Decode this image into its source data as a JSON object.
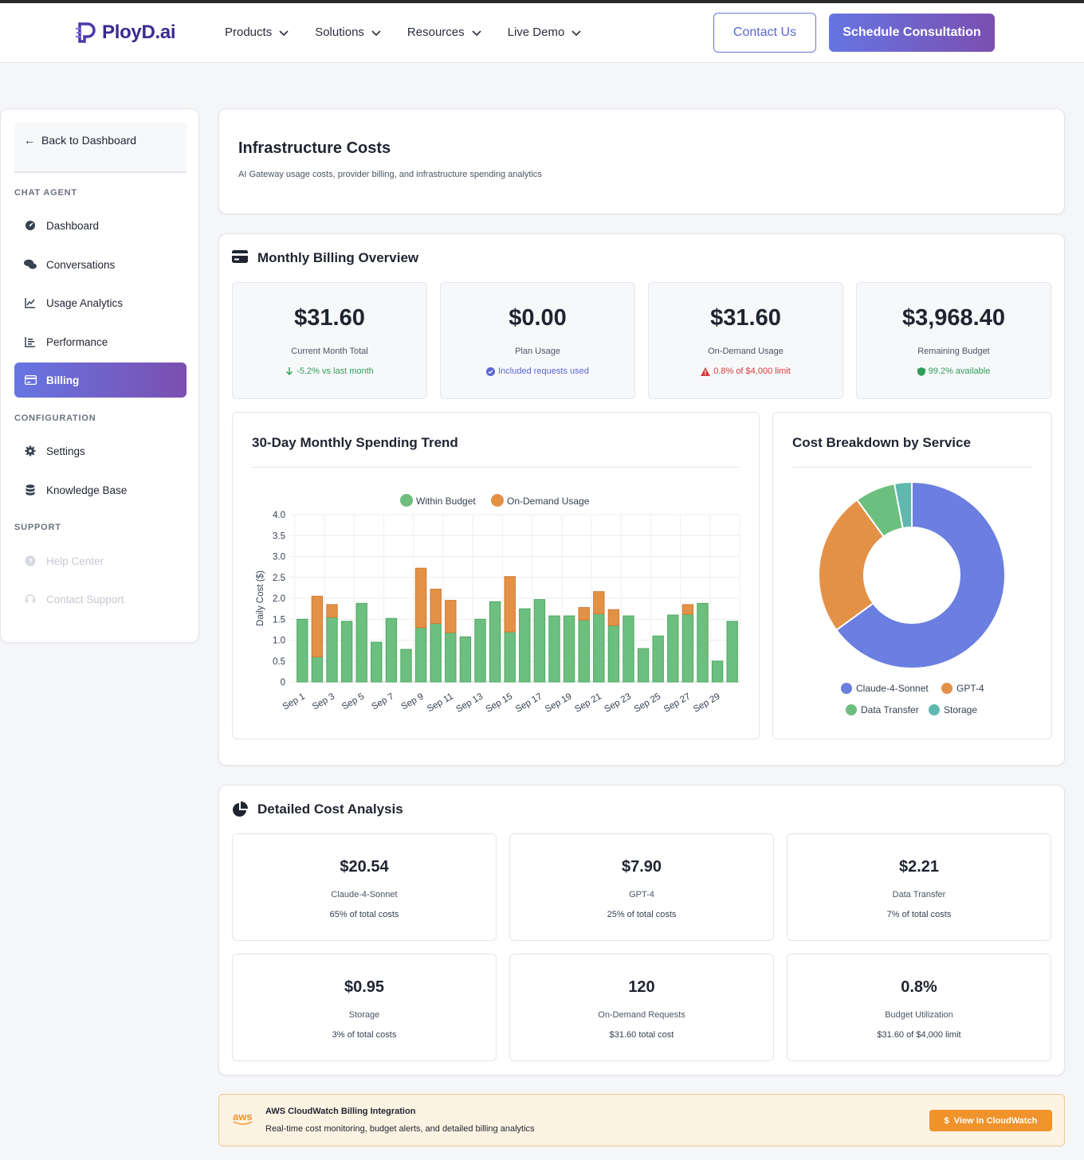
{
  "brand": {
    "name": "PloyD.ai"
  },
  "nav": [
    {
      "label": "Products"
    },
    {
      "label": "Solutions"
    },
    {
      "label": "Resources"
    },
    {
      "label": "Live Demo"
    }
  ],
  "header_buttons": {
    "contact": "Contact Us",
    "schedule": "Schedule Consultation"
  },
  "sidebar": {
    "back": "Back to Dashboard",
    "sections": [
      {
        "label": "CHAT AGENT"
      },
      {
        "label": "CONFIGURATION"
      },
      {
        "label": "SUPPORT"
      }
    ],
    "items": [
      {
        "label": "Dashboard",
        "icon": "gauge-icon"
      },
      {
        "label": "Conversations",
        "icon": "comments-icon"
      },
      {
        "label": "Usage Analytics",
        "icon": "line-chart-icon"
      },
      {
        "label": "Performance",
        "icon": "bar-chart-icon"
      },
      {
        "label": "Billing",
        "icon": "credit-card-icon",
        "active": true
      },
      {
        "label": "Settings",
        "icon": "gear-icon"
      },
      {
        "label": "Knowledge Base",
        "icon": "database-icon"
      },
      {
        "label": "Help Center",
        "icon": "question-icon",
        "disabled": true
      },
      {
        "label": "Contact Support",
        "icon": "headset-icon",
        "disabled": true
      }
    ]
  },
  "page": {
    "title": "Infrastructure Costs",
    "subtitle": "AI Gateway usage costs, provider billing, and infrastructure spending analytics"
  },
  "billing_overview": {
    "title": "Monthly Billing Overview",
    "stats": [
      {
        "value": "$31.60",
        "label": "Current Month Total",
        "note": "-5.2% vs last month",
        "note_color": "#2f9e5b",
        "icon": "arrow-down-icon"
      },
      {
        "value": "$0.00",
        "label": "Plan Usage",
        "note": "Included requests used",
        "note_color": "#5a66d4",
        "icon": "check-circle-icon"
      },
      {
        "value": "$31.60",
        "label": "On-Demand Usage",
        "note": "0.8% of $4,000 limit",
        "note_color": "#d63b3b",
        "icon": "warning-icon"
      },
      {
        "value": "$3,968.40",
        "label": "Remaining Budget",
        "note": "99.2% available",
        "note_color": "#2f9e5b",
        "icon": "shield-icon"
      }
    ]
  },
  "trend_panel": {
    "title": "30-Day Monthly Spending Trend"
  },
  "breakdown_panel": {
    "title": "Cost Breakdown by Service"
  },
  "chart_data": [
    {
      "type": "bar",
      "stacked": true,
      "title": "30-Day Monthly Spending Trend",
      "ylabel": "Daily Cost ($)",
      "ylim": [
        0,
        4
      ],
      "yticks": [
        "4.0",
        "3.5",
        "3.0",
        "2.5",
        "2.0",
        "1.5",
        "1.0",
        "0.5",
        "0"
      ],
      "categories": [
        "Sep 1",
        "Sep 2",
        "Sep 3",
        "Sep 4",
        "Sep 5",
        "Sep 6",
        "Sep 7",
        "Sep 8",
        "Sep 9",
        "Sep 10",
        "Sep 11",
        "Sep 12",
        "Sep 13",
        "Sep 14",
        "Sep 15",
        "Sep 16",
        "Sep 17",
        "Sep 18",
        "Sep 19",
        "Sep 20",
        "Sep 21",
        "Sep 22",
        "Sep 23",
        "Sep 24",
        "Sep 25",
        "Sep 26",
        "Sep 27",
        "Sep 28",
        "Sep 29",
        "Sep 30"
      ],
      "tick_labels": [
        "Sep 1",
        "Sep 3",
        "Sep 5",
        "Sep 7",
        "Sep 9",
        "Sep 11",
        "Sep 13",
        "Sep 15",
        "Sep 17",
        "Sep 19",
        "Sep 21",
        "Sep 23",
        "Sep 25",
        "Sep 27",
        "Sep 29"
      ],
      "legend_position": "top",
      "series": [
        {
          "name": "Within Budget",
          "color": "#6cbf7e",
          "values": [
            1.5,
            0.6,
            1.55,
            1.45,
            1.88,
            0.95,
            1.52,
            0.78,
            1.3,
            1.4,
            1.18,
            1.08,
            1.5,
            1.92,
            1.2,
            1.75,
            1.97,
            1.58,
            1.58,
            1.48,
            1.63,
            1.35,
            1.58,
            0.8,
            1.1,
            1.6,
            1.62,
            1.88,
            0.5,
            1.45
          ]
        },
        {
          "name": "On-Demand Usage",
          "color": "#e49148",
          "values": [
            0,
            1.45,
            0.3,
            0,
            0,
            0,
            0,
            0,
            1.42,
            0.82,
            0.77,
            0,
            0,
            0,
            1.32,
            0,
            0,
            0,
            0,
            0.3,
            0.53,
            0.38,
            0,
            0,
            0,
            0,
            0.23,
            0,
            0,
            0
          ]
        }
      ]
    },
    {
      "type": "pie",
      "title": "Cost Breakdown by Service",
      "donut": true,
      "legend_position": "bottom",
      "categories": [
        "Claude-4-Sonnet",
        "GPT-4",
        "Data Transfer",
        "Storage"
      ],
      "values": [
        20.54,
        7.9,
        2.21,
        0.95
      ],
      "colors": [
        "#6b7fe0",
        "#e49148",
        "#6cbf7e",
        "#5fb8b0"
      ]
    }
  ],
  "detailed": {
    "title": "Detailed Cost Analysis",
    "cards": [
      {
        "value": "$20.54",
        "label": "Claude-4-Sonnet",
        "sub": "65% of total costs"
      },
      {
        "value": "$7.90",
        "label": "GPT-4",
        "sub": "25% of total costs"
      },
      {
        "value": "$2.21",
        "label": "Data Transfer",
        "sub": "7% of total costs"
      },
      {
        "value": "$0.95",
        "label": "Storage",
        "sub": "3% of total costs"
      },
      {
        "value": "120",
        "label": "On-Demand Requests",
        "sub": "$31.60 total cost"
      },
      {
        "value": "0.8%",
        "label": "Budget Utilization",
        "sub": "$31.60 of $4,000 limit"
      }
    ]
  },
  "aws": {
    "logo": "aws",
    "title": "AWS CloudWatch Billing Integration",
    "subtitle": "Real-time cost monitoring, budget alerts, and detailed billing analytics",
    "button": "View in CloudWatch",
    "button_icon": "$"
  }
}
